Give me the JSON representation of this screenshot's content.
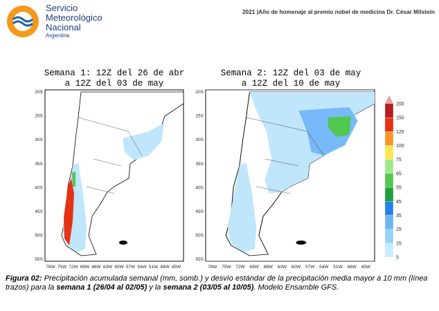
{
  "header": {
    "logo_lines": [
      "Servicio",
      "Meteorológico",
      "Nacional"
    ],
    "logo_country": "Argentina",
    "note": "2021 |Año de homenaje al premio nobel de medicina Dr. César Milstein"
  },
  "panels": [
    {
      "title": [
        "Semana 1: 12Z del 26 de abr",
        "a 12Z del 03 de may"
      ]
    },
    {
      "title": [
        "Semana 2: 12Z del 03 de may",
        "a 12Z del 10 de may"
      ]
    }
  ],
  "map_axes": {
    "lat_labels": [
      "20S",
      "25S",
      "30S",
      "35S",
      "40S",
      "45S",
      "50S",
      "55S"
    ],
    "lon_labels": [
      "78W",
      "75W",
      "72W",
      "69W",
      "66W",
      "63W",
      "60W",
      "57W",
      "54W",
      "51W",
      "48W",
      "45W"
    ]
  },
  "colorbar": {
    "levels": [
      5,
      15,
      25,
      35,
      45,
      55,
      65,
      75,
      100,
      125,
      150,
      200
    ],
    "colors": [
      "#c8ebff",
      "#96d2fa",
      "#6eb4f0",
      "#2882e6",
      "#1ea03c",
      "#50c850",
      "#a0e68c",
      "#fae650",
      "#fa9628",
      "#e63214",
      "#b41e1e"
    ]
  },
  "caption": [
    "Figura 02:",
    " Precipitación acumulada semanal (mm, somb.) y desvío estándar de la precipitación media mayor a 10 mm (línea trazos) para la ",
    "semana 1 (26/04 al 02/05)",
    " y la ",
    "semana 2 (03/05 al 10/05)",
    ". Modelo Ensamble GFS."
  ]
}
